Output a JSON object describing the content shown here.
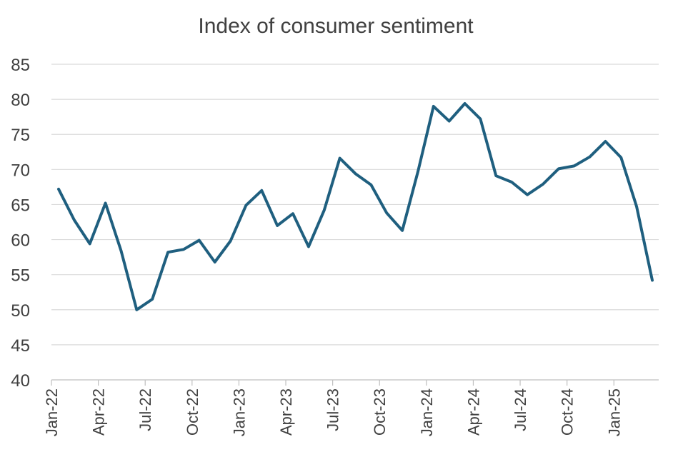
{
  "chart_data": {
    "type": "line",
    "title": "Index of consumer sentiment",
    "xlabel": "",
    "ylabel": "",
    "ylim": [
      40,
      85
    ],
    "yticks": [
      40,
      45,
      50,
      55,
      60,
      65,
      70,
      75,
      80,
      85
    ],
    "grid": true,
    "legend": "none",
    "x_tick_labels": [
      "Jan-22",
      "Apr-22",
      "Jul-22",
      "Oct-22",
      "Jan-23",
      "Apr-23",
      "Jul-23",
      "Oct-23",
      "Jan-24",
      "Apr-24",
      "Jul-24",
      "Oct-24",
      "Jan-25"
    ],
    "x_tick_every": 3,
    "series": [
      {
        "name": "Index of consumer sentiment",
        "color": "#1f5f7f",
        "x": [
          "Jan-22",
          "Feb-22",
          "Mar-22",
          "Apr-22",
          "May-22",
          "Jun-22",
          "Jul-22",
          "Aug-22",
          "Sep-22",
          "Oct-22",
          "Nov-22",
          "Dec-22",
          "Jan-23",
          "Feb-23",
          "Mar-23",
          "Apr-23",
          "May-23",
          "Jun-23",
          "Jul-23",
          "Aug-23",
          "Sep-23",
          "Oct-23",
          "Nov-23",
          "Dec-23",
          "Jan-24",
          "Feb-24",
          "Mar-24",
          "Apr-24",
          "May-24",
          "Jun-24",
          "Jul-24",
          "Aug-24",
          "Sep-24",
          "Oct-24",
          "Nov-24",
          "Dec-24",
          "Jan-25",
          "Feb-25",
          "Mar-25"
        ],
        "values": [
          67.2,
          62.8,
          59.4,
          65.2,
          58.4,
          50.0,
          51.5,
          58.2,
          58.6,
          59.9,
          56.8,
          59.8,
          64.9,
          67.0,
          62.0,
          63.7,
          59.0,
          64.2,
          71.6,
          69.4,
          67.8,
          63.8,
          61.3,
          69.7,
          79.0,
          76.9,
          79.4,
          77.2,
          69.1,
          68.2,
          66.4,
          67.9,
          70.1,
          70.5,
          71.8,
          74.0,
          71.7,
          64.7,
          54.2
        ]
      }
    ]
  }
}
